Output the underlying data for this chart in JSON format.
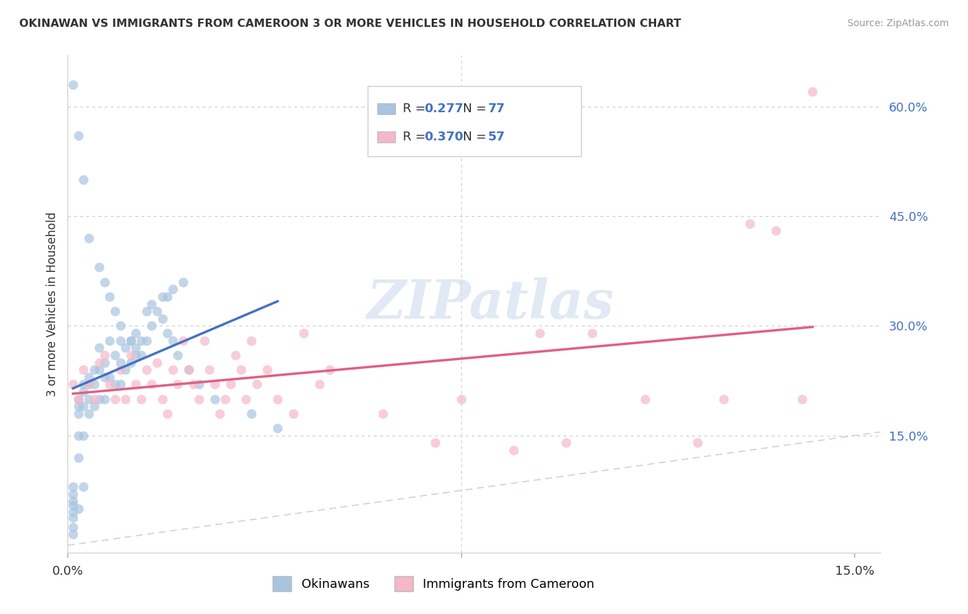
{
  "title": "OKINAWAN VS IMMIGRANTS FROM CAMEROON 3 OR MORE VEHICLES IN HOUSEHOLD CORRELATION CHART",
  "source": "Source: ZipAtlas.com",
  "ylabel": "3 or more Vehicles in Household",
  "xlim": [
    0.0,
    0.155
  ],
  "ylim": [
    -0.01,
    0.67
  ],
  "ytick_positions_right": [
    0.15,
    0.3,
    0.45,
    0.6
  ],
  "ytick_labels_right": [
    "15.0%",
    "30.0%",
    "45.0%",
    "60.0%"
  ],
  "xtick_positions": [
    0.0,
    0.075,
    0.15
  ],
  "xtick_labels": [
    "0.0%",
    "",
    "15.0%"
  ],
  "legend_r1": "0.277",
  "legend_n1": "77",
  "legend_r2": "0.370",
  "legend_n2": "57",
  "color_blue": "#a8c4e0",
  "color_pink": "#f4b8c8",
  "color_blue_text": "#4472c4",
  "line_blue": "#4472c4",
  "line_pink": "#e06080",
  "line_diag": "#b8c8dc",
  "watermark": "ZIPatlas",
  "legend_label_blue": "Okinawans",
  "legend_label_pink": "Immigrants from Cameroon",
  "okinawan_x": [
    0.001,
    0.001,
    0.001,
    0.001,
    0.001,
    0.001,
    0.001,
    0.001,
    0.002,
    0.002,
    0.002,
    0.002,
    0.002,
    0.002,
    0.003,
    0.003,
    0.003,
    0.003,
    0.003,
    0.004,
    0.004,
    0.004,
    0.004,
    0.005,
    0.005,
    0.005,
    0.006,
    0.006,
    0.006,
    0.007,
    0.007,
    0.007,
    0.008,
    0.008,
    0.009,
    0.009,
    0.01,
    0.01,
    0.01,
    0.011,
    0.011,
    0.012,
    0.012,
    0.013,
    0.013,
    0.014,
    0.015,
    0.015,
    0.016,
    0.017,
    0.018,
    0.019,
    0.02,
    0.022,
    0.001,
    0.002,
    0.003,
    0.004,
    0.006,
    0.007,
    0.008,
    0.009,
    0.01,
    0.012,
    0.013,
    0.014,
    0.016,
    0.018,
    0.019,
    0.02,
    0.021,
    0.023,
    0.025,
    0.028,
    0.035,
    0.04
  ],
  "okinawan_y": [
    0.08,
    0.07,
    0.06,
    0.055,
    0.045,
    0.038,
    0.025,
    0.015,
    0.2,
    0.19,
    0.18,
    0.15,
    0.12,
    0.05,
    0.22,
    0.21,
    0.19,
    0.15,
    0.08,
    0.23,
    0.22,
    0.2,
    0.18,
    0.24,
    0.22,
    0.19,
    0.27,
    0.24,
    0.2,
    0.25,
    0.23,
    0.2,
    0.28,
    0.23,
    0.26,
    0.22,
    0.28,
    0.25,
    0.22,
    0.27,
    0.24,
    0.28,
    0.25,
    0.29,
    0.26,
    0.28,
    0.32,
    0.28,
    0.3,
    0.32,
    0.34,
    0.34,
    0.35,
    0.36,
    0.63,
    0.56,
    0.5,
    0.42,
    0.38,
    0.36,
    0.34,
    0.32,
    0.3,
    0.28,
    0.27,
    0.26,
    0.33,
    0.31,
    0.29,
    0.28,
    0.26,
    0.24,
    0.22,
    0.2,
    0.18,
    0.16
  ],
  "cameroon_x": [
    0.001,
    0.002,
    0.003,
    0.004,
    0.005,
    0.006,
    0.007,
    0.008,
    0.009,
    0.01,
    0.011,
    0.012,
    0.013,
    0.014,
    0.015,
    0.016,
    0.017,
    0.018,
    0.019,
    0.02,
    0.021,
    0.022,
    0.023,
    0.024,
    0.025,
    0.026,
    0.027,
    0.028,
    0.029,
    0.03,
    0.031,
    0.032,
    0.033,
    0.034,
    0.035,
    0.036,
    0.038,
    0.04,
    0.043,
    0.045,
    0.048,
    0.05,
    0.06,
    0.07,
    0.075,
    0.085,
    0.09,
    0.095,
    0.1,
    0.11,
    0.12,
    0.125,
    0.13,
    0.135,
    0.14,
    0.142
  ],
  "cameroon_y": [
    0.22,
    0.2,
    0.24,
    0.22,
    0.2,
    0.25,
    0.26,
    0.22,
    0.2,
    0.24,
    0.2,
    0.26,
    0.22,
    0.2,
    0.24,
    0.22,
    0.25,
    0.2,
    0.18,
    0.24,
    0.22,
    0.28,
    0.24,
    0.22,
    0.2,
    0.28,
    0.24,
    0.22,
    0.18,
    0.2,
    0.22,
    0.26,
    0.24,
    0.2,
    0.28,
    0.22,
    0.24,
    0.2,
    0.18,
    0.29,
    0.22,
    0.24,
    0.18,
    0.14,
    0.2,
    0.13,
    0.29,
    0.14,
    0.29,
    0.2,
    0.14,
    0.2,
    0.44,
    0.43,
    0.2,
    0.62
  ]
}
